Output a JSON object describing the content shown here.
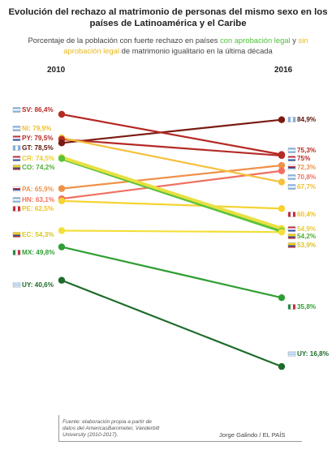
{
  "title": "Evolución del rechazo al matrimonio de personas del mismo sexo en los países de Latinoamérica y el Caribe",
  "subtitle": {
    "part1": "Porcentaje de la población con fuerte rechazo en países ",
    "legal": "con aprobación legal",
    "part2": " y ",
    "sinlegal": "sin aprobación legal",
    "part3": " de matrimonio igualitario en la última década"
  },
  "source": "Fuente: elaboración propia a partir de datos del AmericasBarometer, Vanderbilt University (2010-2017).",
  "credit": "Jorge Galindo / EL PAÍS",
  "chart_data": {
    "type": "line",
    "x": [
      "2010",
      "2016"
    ],
    "series": [
      {
        "name": "SV",
        "values": [
          86.4,
          75.3
        ],
        "color": "#b52a25",
        "flag": "SV"
      },
      {
        "name": "NI",
        "values": [
          79.9,
          67.7
        ],
        "color": "#f4c13c",
        "flag": "NI"
      },
      {
        "name": "PY",
        "values": [
          79.5,
          75
        ],
        "color": "#b52a25",
        "flag": "PY"
      },
      {
        "name": "GT",
        "values": [
          78.5,
          84.9
        ],
        "color": "#7a1a10",
        "flag": "GT"
      },
      {
        "name": "CR",
        "values": [
          74.5,
          54.9
        ],
        "color": "#e8e043",
        "flag": "CR"
      },
      {
        "name": "CO",
        "values": [
          74.2,
          54.2
        ],
        "color": "#59c23a",
        "flag": "CO"
      },
      {
        "name": "PA",
        "values": [
          65.9,
          72.3
        ],
        "color": "#f0914a",
        "flag": "PA"
      },
      {
        "name": "HN",
        "values": [
          63.1,
          70.8
        ],
        "color": "#ef7060",
        "flag": "HN"
      },
      {
        "name": "PE",
        "values": [
          62.5,
          60.4
        ],
        "color": "#f6d332",
        "flag": "PE"
      },
      {
        "name": "EC",
        "values": [
          54.3,
          53.9
        ],
        "color": "#f3df3a",
        "flag": "EC"
      },
      {
        "name": "MX",
        "values": [
          49.8,
          35.8
        ],
        "color": "#2f9e33",
        "flag": "MX"
      },
      {
        "name": "UY",
        "values": [
          40.6,
          16.8
        ],
        "color": "#1f6b2b",
        "flag": "UY"
      }
    ],
    "labels_2010": [
      "SV: 86,4%",
      "NI: 79,9%",
      "PY: 79,5%",
      "GT: 78,5%",
      "CR: 74,5%",
      "CO: 74,2%",
      "PA: 65,9%",
      "HN: 63,1%",
      "PE: 62,5%",
      "EC: 54,3%",
      "MX: 49,8%",
      "UY: 40,6%"
    ],
    "labels_2016": [
      "75,3%",
      "67,7%",
      "75%",
      "84,9%",
      "54,9%",
      "54,2%",
      "72,3%",
      "70,8%",
      "60,4%",
      "53,9%",
      "35,8%",
      "UY: 16,8%"
    ],
    "label_colors": [
      "#b52a25",
      "#f0c030",
      "#b52a25",
      "#5a1208",
      "#e8cc30",
      "#4fae30",
      "#f0914a",
      "#ef7060",
      "#f0c020",
      "#d9c520",
      "#2f9e33",
      "#1f6b2b"
    ],
    "ylim": [
      16,
      87
    ]
  }
}
